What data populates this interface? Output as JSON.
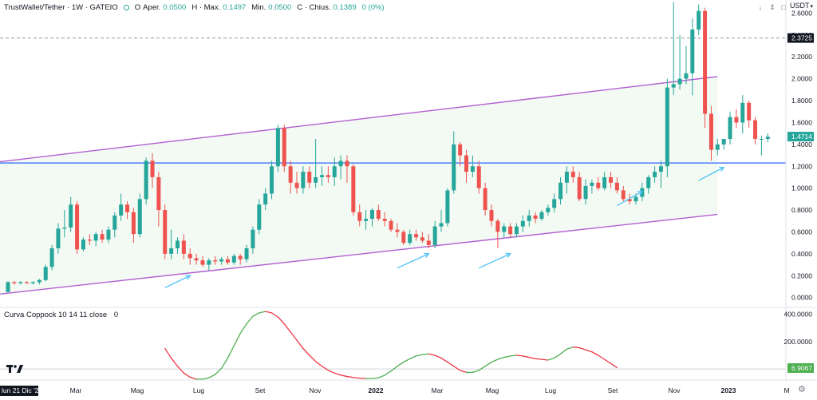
{
  "header": {
    "symbol": "TrustWallet/Tether · 1W · GATEIO",
    "open_label": "O",
    "open_key": "Aper.",
    "open_value": "0.0500",
    "high_key": "H · Max.",
    "high_value": "0.1497",
    "low_key": "Min.",
    "low_value": "0.0500",
    "close_key": "C · Chius.",
    "close_value": "0.1389",
    "change_value": "0 (0%)",
    "unit": "USDT"
  },
  "indicator_label": {
    "name": "Curva Coppock 10 14 11 close",
    "value": "0"
  },
  "colors": {
    "up": "#26a69a",
    "down": "#ef5350",
    "channel": "#b35ed1",
    "support": "#2962ff",
    "arrow": "#4fc3f7",
    "coppock_up": "#4caf50",
    "coppock_down": "#f23645",
    "channel_fill": "#e8f5e9",
    "price_label_bg": "#26a69a"
  },
  "icons": [
    "arrow-down-icon",
    "chevron-up-down-icon",
    "maximize-icon",
    "tradingview-logo-icon",
    "gear-icon"
  ],
  "chart_data": {
    "type": "candlestick",
    "price_axis": {
      "ticks": [
        "2.6000",
        "2.4000",
        "2.2000",
        "2.0000",
        "1.8000",
        "1.6000",
        "1.4000",
        "1.2000",
        "1.0000",
        "0.8000",
        "0.6000",
        "0.4000",
        "0.2000",
        "0.0000"
      ],
      "range": [
        -0.09,
        2.72
      ],
      "last_price": "1.4714",
      "crosshair_price": "2.3725"
    },
    "time_axis": {
      "labels": [
        "Mar",
        "Mag",
        "Lug",
        "Set",
        "Nov",
        "2022",
        "Mar",
        "Mag",
        "Lug",
        "Set",
        "Nov",
        "2023",
        "M"
      ],
      "cursor_date": "lun 21 Dic '20"
    },
    "candles": [
      [
        0.05,
        0.15,
        0.05,
        0.14
      ],
      [
        0.14,
        0.15,
        0.12,
        0.13
      ],
      [
        0.13,
        0.15,
        0.12,
        0.14
      ],
      [
        0.14,
        0.15,
        0.13,
        0.13
      ],
      [
        0.13,
        0.15,
        0.12,
        0.14
      ],
      [
        0.14,
        0.17,
        0.12,
        0.16
      ],
      [
        0.16,
        0.3,
        0.15,
        0.28
      ],
      [
        0.28,
        0.48,
        0.25,
        0.45
      ],
      [
        0.45,
        0.68,
        0.4,
        0.63
      ],
      [
        0.63,
        0.8,
        0.55,
        0.64
      ],
      [
        0.64,
        0.92,
        0.6,
        0.85
      ],
      [
        0.85,
        0.88,
        0.4,
        0.44
      ],
      [
        0.44,
        0.55,
        0.42,
        0.53
      ],
      [
        0.53,
        0.58,
        0.48,
        0.52
      ],
      [
        0.52,
        0.6,
        0.47,
        0.58
      ],
      [
        0.58,
        0.62,
        0.5,
        0.53
      ],
      [
        0.53,
        0.65,
        0.5,
        0.62
      ],
      [
        0.62,
        0.78,
        0.55,
        0.75
      ],
      [
        0.75,
        0.95,
        0.7,
        0.85
      ],
      [
        0.85,
        0.88,
        0.72,
        0.78
      ],
      [
        0.78,
        0.82,
        0.5,
        0.58
      ],
      [
        0.58,
        0.95,
        0.55,
        0.9
      ],
      [
        0.9,
        1.28,
        0.85,
        1.25
      ],
      [
        1.25,
        1.32,
        1.0,
        1.1
      ],
      [
        1.1,
        1.15,
        0.65,
        0.8
      ],
      [
        0.8,
        0.85,
        0.35,
        0.4
      ],
      [
        0.4,
        0.62,
        0.35,
        0.45
      ],
      [
        0.45,
        0.55,
        0.4,
        0.52
      ],
      [
        0.52,
        0.58,
        0.35,
        0.4
      ],
      [
        0.4,
        0.45,
        0.3,
        0.36
      ],
      [
        0.36,
        0.4,
        0.3,
        0.34
      ],
      [
        0.34,
        0.38,
        0.28,
        0.3
      ],
      [
        0.3,
        0.36,
        0.25,
        0.34
      ],
      [
        0.34,
        0.38,
        0.3,
        0.33
      ],
      [
        0.33,
        0.37,
        0.3,
        0.35
      ],
      [
        0.35,
        0.38,
        0.3,
        0.32
      ],
      [
        0.32,
        0.4,
        0.3,
        0.38
      ],
      [
        0.38,
        0.4,
        0.3,
        0.35
      ],
      [
        0.35,
        0.48,
        0.32,
        0.45
      ],
      [
        0.45,
        0.65,
        0.4,
        0.62
      ],
      [
        0.62,
        0.9,
        0.58,
        0.85
      ],
      [
        0.85,
        1.0,
        0.8,
        0.95
      ],
      [
        0.95,
        1.25,
        0.9,
        1.2
      ],
      [
        1.2,
        1.58,
        1.15,
        1.55
      ],
      [
        1.55,
        1.58,
        1.15,
        1.2
      ],
      [
        1.2,
        1.25,
        0.95,
        1.05
      ],
      [
        1.05,
        1.15,
        0.95,
        1.0
      ],
      [
        1.0,
        1.2,
        0.95,
        1.15
      ],
      [
        1.15,
        1.2,
        1.0,
        1.05
      ],
      [
        1.05,
        1.45,
        1.0,
        1.1
      ],
      [
        1.1,
        1.2,
        1.02,
        1.12
      ],
      [
        1.12,
        1.2,
        1.05,
        1.1
      ],
      [
        1.1,
        1.28,
        1.02,
        1.2
      ],
      [
        1.2,
        1.3,
        1.08,
        1.25
      ],
      [
        1.25,
        1.3,
        1.05,
        1.2
      ],
      [
        1.2,
        1.22,
        0.75,
        0.78
      ],
      [
        0.78,
        0.85,
        0.65,
        0.7
      ],
      [
        0.7,
        0.8,
        0.62,
        0.72
      ],
      [
        0.72,
        0.82,
        0.65,
        0.8
      ],
      [
        0.8,
        0.85,
        0.7,
        0.72
      ],
      [
        0.72,
        0.78,
        0.65,
        0.7
      ],
      [
        0.7,
        0.72,
        0.6,
        0.62
      ],
      [
        0.62,
        0.68,
        0.55,
        0.6
      ],
      [
        0.6,
        0.62,
        0.48,
        0.5
      ],
      [
        0.5,
        0.62,
        0.48,
        0.58
      ],
      [
        0.58,
        0.62,
        0.52,
        0.55
      ],
      [
        0.55,
        0.6,
        0.5,
        0.52
      ],
      [
        0.52,
        0.58,
        0.45,
        0.48
      ],
      [
        0.48,
        0.7,
        0.45,
        0.65
      ],
      [
        0.65,
        0.8,
        0.6,
        0.68
      ],
      [
        0.68,
        1.0,
        0.65,
        0.98
      ],
      [
        0.98,
        1.52,
        0.95,
        1.4
      ],
      [
        1.4,
        1.42,
        1.2,
        1.3
      ],
      [
        1.3,
        1.35,
        1.05,
        1.15
      ],
      [
        1.15,
        1.3,
        1.1,
        1.2
      ],
      [
        1.2,
        1.25,
        0.95,
        1.0
      ],
      [
        1.0,
        1.05,
        0.75,
        0.8
      ],
      [
        0.8,
        0.85,
        0.65,
        0.7
      ],
      [
        0.7,
        0.72,
        0.45,
        0.6
      ],
      [
        0.6,
        0.68,
        0.55,
        0.65
      ],
      [
        0.65,
        0.68,
        0.55,
        0.58
      ],
      [
        0.58,
        0.68,
        0.55,
        0.65
      ],
      [
        0.65,
        0.75,
        0.6,
        0.7
      ],
      [
        0.7,
        0.8,
        0.65,
        0.75
      ],
      [
        0.75,
        0.78,
        0.68,
        0.72
      ],
      [
        0.72,
        0.8,
        0.7,
        0.78
      ],
      [
        0.78,
        0.85,
        0.75,
        0.82
      ],
      [
        0.82,
        0.95,
        0.78,
        0.9
      ],
      [
        0.9,
        1.1,
        0.85,
        1.05
      ],
      [
        1.05,
        1.2,
        0.95,
        1.15
      ],
      [
        1.15,
        1.2,
        1.05,
        1.1
      ],
      [
        1.1,
        1.15,
        0.88,
        0.9
      ],
      [
        0.9,
        1.08,
        0.85,
        1.02
      ],
      [
        1.02,
        1.08,
        0.95,
        1.05
      ],
      [
        1.05,
        1.1,
        0.98,
        1.0
      ],
      [
        1.0,
        1.15,
        0.98,
        1.1
      ],
      [
        1.1,
        1.15,
        1.0,
        1.05
      ],
      [
        1.05,
        1.1,
        0.95,
        0.98
      ],
      [
        0.98,
        1.02,
        0.88,
        0.9
      ],
      [
        0.9,
        0.95,
        0.85,
        0.88
      ],
      [
        0.88,
        0.95,
        0.85,
        0.92
      ],
      [
        0.92,
        1.05,
        0.88,
        1.0
      ],
      [
        1.0,
        1.12,
        0.95,
        1.1
      ],
      [
        1.1,
        1.2,
        1.05,
        1.15
      ],
      [
        1.15,
        1.25,
        1.0,
        1.2
      ],
      [
        1.2,
        2.0,
        1.1,
        1.92
      ],
      [
        1.92,
        2.7,
        1.85,
        1.95
      ],
      [
        1.95,
        2.4,
        1.9,
        2.0
      ],
      [
        2.0,
        2.3,
        1.95,
        2.05
      ],
      [
        2.05,
        2.55,
        1.85,
        2.45
      ],
      [
        2.45,
        2.68,
        2.4,
        2.62
      ],
      [
        2.62,
        2.65,
        1.55,
        1.68
      ],
      [
        1.68,
        1.75,
        1.25,
        1.35
      ],
      [
        1.35,
        1.45,
        1.3,
        1.4
      ],
      [
        1.4,
        1.45,
        1.35,
        1.45
      ],
      [
        1.45,
        1.7,
        1.4,
        1.65
      ],
      [
        1.65,
        1.72,
        1.55,
        1.6
      ],
      [
        1.6,
        1.85,
        1.5,
        1.78
      ],
      [
        1.78,
        1.8,
        1.55,
        1.62
      ],
      [
        1.62,
        1.65,
        1.4,
        1.45
      ],
      [
        1.45,
        1.48,
        1.3,
        1.45
      ],
      [
        1.45,
        1.5,
        1.42,
        1.47
      ]
    ],
    "ascending_channel": {
      "upper": [
        [
          0,
          1.25
        ],
        [
          113,
          2.02
        ]
      ],
      "lower": [
        [
          0,
          0.04
        ],
        [
          113,
          0.76
        ]
      ]
    },
    "support_level": 1.23,
    "arrows": [
      {
        "x": [
          25,
          29
        ],
        "price": [
          0.09,
          0.2
        ]
      },
      {
        "x": [
          62,
          67
        ],
        "price": [
          0.27,
          0.4
        ]
      },
      {
        "x": [
          75,
          80
        ],
        "price": [
          0.27,
          0.4
        ]
      },
      {
        "x": [
          97,
          101
        ],
        "price": [
          0.84,
          0.97
        ]
      },
      {
        "x": [
          110,
          114
        ],
        "price": [
          1.07,
          1.19
        ]
      }
    ],
    "coppock": {
      "name": "Curva Coppock 10 14 11 close",
      "axis_ticks": [
        "400.0000",
        "200.0000"
      ],
      "range": [
        -75,
        450
      ],
      "last_value": "6.9067",
      "start_index": 25,
      "values": [
        150,
        80,
        20,
        -30,
        -60,
        -75,
        -75,
        -65,
        -40,
        5,
        80,
        170,
        260,
        330,
        385,
        410,
        420,
        410,
        380,
        330,
        270,
        210,
        150,
        100,
        55,
        20,
        -10,
        -30,
        -45,
        -55,
        -62,
        -67,
        -70,
        -70,
        -65,
        -45,
        -15,
        20,
        50,
        75,
        95,
        105,
        110,
        100,
        80,
        50,
        20,
        -10,
        -25,
        -25,
        -10,
        20,
        50,
        70,
        85,
        95,
        100,
        95,
        85,
        75,
        70,
        65,
        80,
        110,
        145,
        160,
        155,
        140,
        125,
        100,
        70,
        40,
        10
      ]
    }
  }
}
